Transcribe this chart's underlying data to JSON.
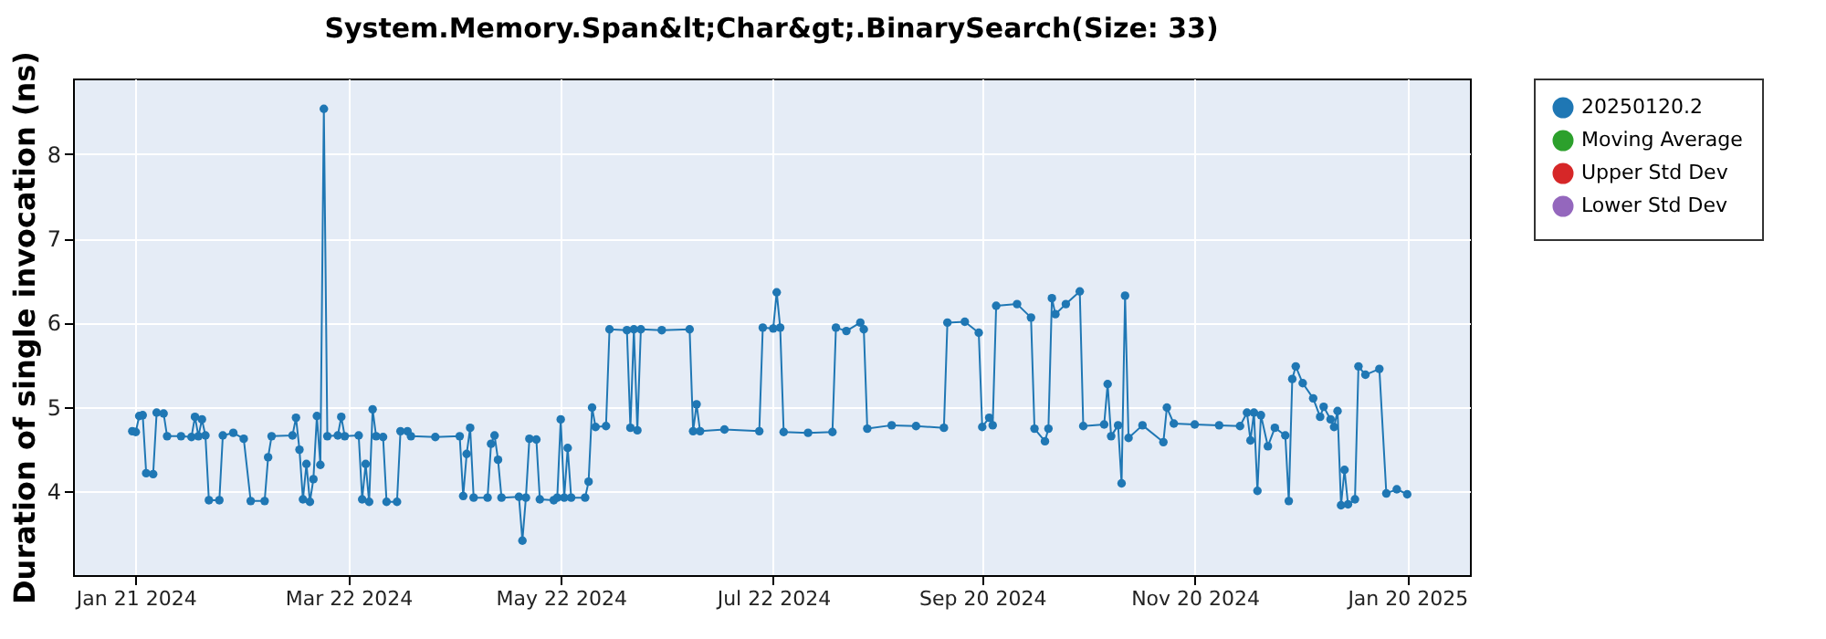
{
  "chart_data": {
    "type": "line",
    "title": "System.Memory.Span&lt;Char&gt;.BinarySearch(Size: 33)",
    "ylabel": "Duration of single invocation (ns)",
    "xlim": [
      "2024-01-03",
      "2025-02-07"
    ],
    "ylim": [
      3.0,
      8.9
    ],
    "yticks": [
      4,
      5,
      6,
      7,
      8
    ],
    "xticks": [
      {
        "value": "2024-01-21",
        "label": "Jan 21 2024"
      },
      {
        "value": "2024-03-22",
        "label": "Mar 22 2024"
      },
      {
        "value": "2024-05-22",
        "label": "May 22 2024"
      },
      {
        "value": "2024-07-22",
        "label": "Jul 22 2024"
      },
      {
        "value": "2024-09-20",
        "label": "Sep 20 2024"
      },
      {
        "value": "2024-11-20",
        "label": "Nov 20 2024"
      },
      {
        "value": "2025-01-20",
        "label": "Jan 20 2025"
      }
    ],
    "grid": true,
    "legend": "right",
    "marker": "circle",
    "series": [
      {
        "name": "20250120.2",
        "color": "#1f77b4",
        "x": [
          "2024-01-20",
          "2024-01-21",
          "2024-01-22",
          "2024-01-23",
          "2024-01-24",
          "2024-01-26",
          "2024-01-27",
          "2024-01-29",
          "2024-01-30",
          "2024-02-03",
          "2024-02-06",
          "2024-02-07",
          "2024-02-08",
          "2024-02-09",
          "2024-02-10",
          "2024-02-11",
          "2024-02-14",
          "2024-02-15",
          "2024-02-18",
          "2024-02-21",
          "2024-02-23",
          "2024-02-27",
          "2024-02-28",
          "2024-02-29",
          "2024-03-06",
          "2024-03-07",
          "2024-03-08",
          "2024-03-09",
          "2024-03-10",
          "2024-03-11",
          "2024-03-12",
          "2024-03-13",
          "2024-03-14",
          "2024-03-15",
          "2024-03-16",
          "2024-03-19",
          "2024-03-20",
          "2024-03-21",
          "2024-03-25",
          "2024-03-26",
          "2024-03-27",
          "2024-03-28",
          "2024-03-29",
          "2024-03-30",
          "2024-04-01",
          "2024-04-02",
          "2024-04-05",
          "2024-04-06",
          "2024-04-08",
          "2024-04-09",
          "2024-04-16",
          "2024-04-23",
          "2024-04-24",
          "2024-04-25",
          "2024-04-26",
          "2024-04-27",
          "2024-05-01",
          "2024-05-02",
          "2024-05-03",
          "2024-05-04",
          "2024-05-05",
          "2024-05-10",
          "2024-05-11",
          "2024-05-12",
          "2024-05-13",
          "2024-05-15",
          "2024-05-16",
          "2024-05-20",
          "2024-05-21",
          "2024-05-22",
          "2024-05-23",
          "2024-05-24",
          "2024-05-25",
          "2024-05-29",
          "2024-05-30",
          "2024-05-31",
          "2024-06-01",
          "2024-06-04",
          "2024-06-05",
          "2024-06-10",
          "2024-06-11",
          "2024-06-12",
          "2024-06-13",
          "2024-06-14",
          "2024-06-20",
          "2024-06-28",
          "2024-06-29",
          "2024-06-30",
          "2024-07-01",
          "2024-07-08",
          "2024-07-18",
          "2024-07-19",
          "2024-07-22",
          "2024-07-23",
          "2024-07-24",
          "2024-07-25",
          "2024-08-01",
          "2024-08-08",
          "2024-08-09",
          "2024-08-12",
          "2024-08-16",
          "2024-08-17",
          "2024-08-18",
          "2024-08-25",
          "2024-09-01",
          "2024-09-09",
          "2024-09-10",
          "2024-09-15",
          "2024-09-19",
          "2024-09-20",
          "2024-09-22",
          "2024-09-23",
          "2024-09-24",
          "2024-09-30",
          "2024-10-04",
          "2024-10-05",
          "2024-10-08",
          "2024-10-09",
          "2024-10-10",
          "2024-10-11",
          "2024-10-14",
          "2024-10-18",
          "2024-10-19",
          "2024-10-25",
          "2024-10-26",
          "2024-10-27",
          "2024-10-29",
          "2024-10-30",
          "2024-10-31",
          "2024-11-01",
          "2024-11-05",
          "2024-11-11",
          "2024-11-12",
          "2024-11-14",
          "2024-11-20",
          "2024-11-27",
          "2024-12-03",
          "2024-12-05",
          "2024-12-06",
          "2024-12-07",
          "2024-12-08",
          "2024-12-09",
          "2024-12-11",
          "2024-12-13",
          "2024-12-16",
          "2024-12-17",
          "2024-12-18",
          "2024-12-19",
          "2024-12-21",
          "2024-12-24",
          "2024-12-26",
          "2024-12-27",
          "2024-12-29",
          "2024-12-30",
          "2024-12-31",
          "2025-01-01",
          "2025-01-02",
          "2025-01-03",
          "2025-01-05",
          "2025-01-06",
          "2025-01-08",
          "2025-01-12",
          "2025-01-14",
          "2025-01-17",
          "2025-01-20"
        ],
        "values": [
          4.71,
          4.7,
          4.89,
          4.9,
          4.21,
          4.2,
          4.93,
          4.92,
          4.65,
          4.65,
          4.64,
          4.88,
          4.65,
          4.85,
          4.66,
          3.89,
          3.89,
          4.66,
          4.69,
          4.62,
          3.88,
          3.88,
          4.4,
          4.65,
          4.66,
          4.87,
          4.49,
          3.9,
          4.32,
          3.87,
          4.14,
          4.89,
          4.31,
          8.54,
          4.65,
          4.66,
          4.88,
          4.65,
          4.66,
          3.9,
          4.32,
          3.87,
          4.97,
          4.65,
          4.64,
          3.87,
          3.87,
          4.71,
          4.71,
          4.65,
          4.64,
          4.65,
          3.94,
          4.44,
          4.75,
          3.92,
          3.92,
          4.56,
          4.66,
          4.37,
          3.92,
          3.93,
          3.41,
          3.92,
          4.62,
          4.61,
          3.9,
          3.89,
          3.92,
          4.85,
          3.92,
          4.51,
          3.92,
          3.92,
          4.11,
          4.99,
          4.76,
          4.77,
          5.92,
          5.91,
          4.75,
          5.92,
          4.72,
          5.92,
          5.91,
          5.92,
          4.71,
          5.03,
          4.71,
          4.73,
          4.71,
          5.94,
          5.93,
          6.36,
          5.94,
          4.7,
          4.69,
          4.7,
          5.94,
          5.9,
          6.0,
          5.92,
          4.74,
          4.78,
          4.77,
          4.75,
          6.0,
          6.01,
          5.88,
          4.76,
          4.87,
          4.78,
          6.2,
          6.22,
          6.06,
          4.74,
          4.59,
          4.74,
          6.29,
          6.1,
          6.22,
          6.37,
          4.77,
          4.79,
          5.27,
          4.65,
          4.78,
          4.09,
          6.32,
          4.63,
          4.78,
          4.58,
          4.99,
          4.8,
          4.79,
          4.78,
          4.77,
          4.93,
          4.6,
          4.93,
          4.0,
          4.9,
          4.53,
          4.75,
          4.66,
          3.88,
          5.33,
          5.48,
          5.28,
          5.1,
          4.88,
          5.0,
          4.85,
          4.76,
          4.95,
          3.83,
          4.25,
          3.84,
          3.9,
          5.48,
          5.38,
          5.45,
          3.97,
          4.02,
          3.96
        ]
      },
      {
        "name": "Moving Average",
        "color": "#2ca02c"
      },
      {
        "name": "Upper Std Dev",
        "color": "#d62728"
      },
      {
        "name": "Lower Std Dev",
        "color": "#9467bd"
      }
    ]
  }
}
